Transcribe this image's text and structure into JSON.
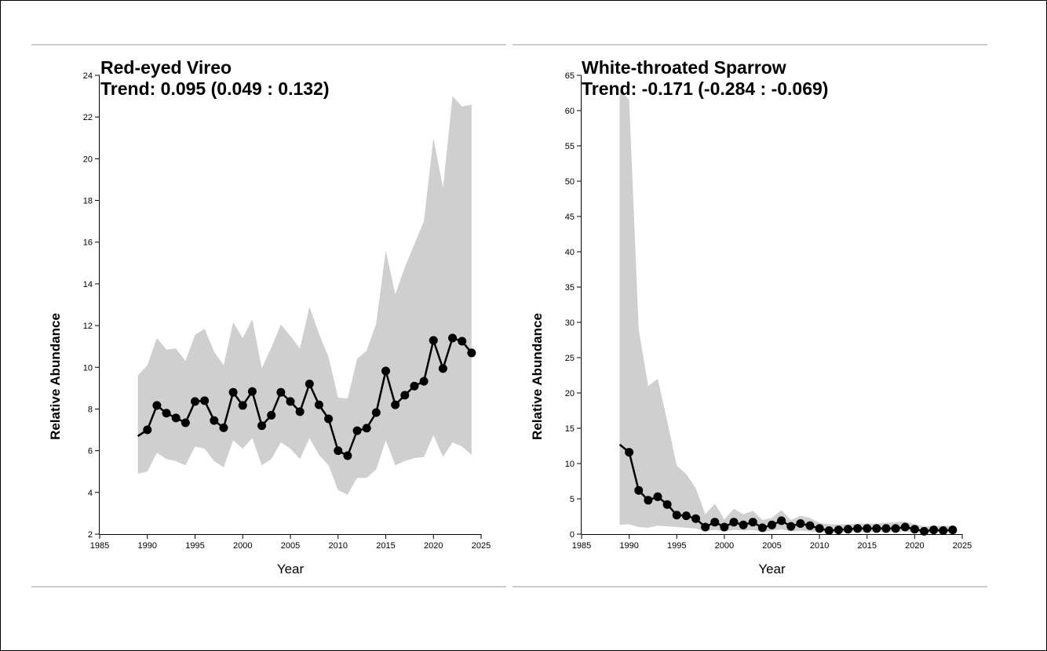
{
  "chart_data": [
    {
      "type": "line",
      "title": "Red-eyed Vireo",
      "subtitle": "Trend: 0.095 (0.049 : 0.132)",
      "xlabel": "Year",
      "ylabel": "Relative Abundance",
      "xlim": [
        1985,
        2025
      ],
      "ylim": [
        2,
        24
      ],
      "xticks": [
        1985,
        1990,
        1995,
        2000,
        2005,
        2010,
        2015,
        2020,
        2025
      ],
      "yticks": [
        2,
        4,
        6,
        8,
        10,
        12,
        14,
        16,
        18,
        20,
        22,
        24
      ],
      "x": [
        1989,
        1990,
        1991,
        1992,
        1993,
        1994,
        1995,
        1996,
        1997,
        1998,
        1999,
        2000,
        2001,
        2002,
        2003,
        2004,
        2005,
        2006,
        2007,
        2008,
        2009,
        2010,
        2011,
        2012,
        2013,
        2014,
        2015,
        2016,
        2017,
        2018,
        2019,
        2020,
        2021,
        2022,
        2023,
        2024
      ],
      "values": [
        6.7,
        7.0,
        8.17,
        7.8,
        7.57,
        7.34,
        8.36,
        8.4,
        7.45,
        7.1,
        8.8,
        8.17,
        8.84,
        7.2,
        7.7,
        8.8,
        8.36,
        7.87,
        9.2,
        8.2,
        7.53,
        6.0,
        5.76,
        6.96,
        7.08,
        7.83,
        9.82,
        8.2,
        8.66,
        9.1,
        9.33,
        11.29,
        9.94,
        11.4,
        11.25,
        10.69
      ],
      "upper": [
        9.6,
        10.1,
        11.4,
        10.85,
        10.9,
        10.3,
        11.55,
        11.85,
        10.75,
        10.1,
        12.15,
        11.4,
        12.3,
        9.95,
        10.95,
        12.05,
        11.5,
        10.9,
        12.9,
        11.6,
        10.5,
        8.55,
        8.5,
        10.4,
        10.8,
        12.1,
        15.6,
        13.5,
        14.8,
        15.9,
        17.0,
        21.0,
        18.6,
        23.0,
        22.5,
        22.6
      ],
      "lower": [
        4.9,
        5.0,
        5.9,
        5.6,
        5.5,
        5.3,
        6.2,
        6.1,
        5.5,
        5.2,
        6.5,
        6.1,
        6.6,
        5.3,
        5.6,
        6.4,
        6.1,
        5.6,
        6.6,
        5.8,
        5.3,
        4.1,
        3.9,
        4.7,
        4.7,
        5.1,
        6.5,
        5.3,
        5.5,
        5.65,
        5.7,
        6.75,
        5.7,
        6.4,
        6.2,
        5.8
      ]
    },
    {
      "type": "line",
      "title": "White-throated Sparrow",
      "subtitle": "Trend: -0.171 (-0.284 : -0.069)",
      "xlabel": "Year",
      "ylabel": "Relative Abundance",
      "xlim": [
        1985,
        2025
      ],
      "ylim": [
        0,
        65
      ],
      "xticks": [
        1985,
        1990,
        1995,
        2000,
        2005,
        2010,
        2015,
        2020,
        2025
      ],
      "yticks": [
        0,
        5,
        10,
        15,
        20,
        25,
        30,
        35,
        40,
        45,
        50,
        55,
        60,
        65
      ],
      "x": [
        1989,
        1990,
        1991,
        1992,
        1993,
        1994,
        1995,
        1996,
        1997,
        1998,
        1999,
        2000,
        2001,
        2002,
        2003,
        2004,
        2005,
        2006,
        2007,
        2008,
        2009,
        2010,
        2011,
        2012,
        2013,
        2014,
        2015,
        2016,
        2017,
        2018,
        2019,
        2020,
        2021,
        2022,
        2023,
        2024
      ],
      "values": [
        12.7,
        11.6,
        6.2,
        4.8,
        5.3,
        4.2,
        2.7,
        2.6,
        2.2,
        1.0,
        1.7,
        1.0,
        1.7,
        1.3,
        1.7,
        0.9,
        1.3,
        1.9,
        1.1,
        1.5,
        1.2,
        0.8,
        0.5,
        0.6,
        0.7,
        0.8,
        0.8,
        0.8,
        0.8,
        0.8,
        1.0,
        0.7,
        0.4,
        0.6,
        0.5,
        0.6
      ],
      "upper": [
        63,
        61.5,
        29,
        21,
        22,
        16,
        9.7,
        8.5,
        6.5,
        2.8,
        4.3,
        2.1,
        3.6,
        2.8,
        3.3,
        2.0,
        2.3,
        3.4,
        2.0,
        2.6,
        2.3,
        1.6,
        1.4,
        1.4,
        1.4,
        1.5,
        1.5,
        1.5,
        1.6,
        1.7,
        1.8,
        1.4,
        1.1,
        1.2,
        1.2,
        1.2
      ],
      "lower": [
        1.3,
        1.4,
        1.0,
        0.9,
        1.2,
        1.1,
        1.0,
        0.9,
        0.8,
        0.4,
        0.6,
        0.4,
        0.6,
        0.5,
        0.6,
        0.3,
        0.5,
        0.7,
        0.4,
        0.5,
        0.4,
        0.3,
        0.2,
        0.2,
        0.3,
        0.3,
        0.3,
        0.3,
        0.3,
        0.3,
        0.4,
        0.3,
        0.1,
        0.2,
        0.2,
        0.2
      ]
    }
  ]
}
